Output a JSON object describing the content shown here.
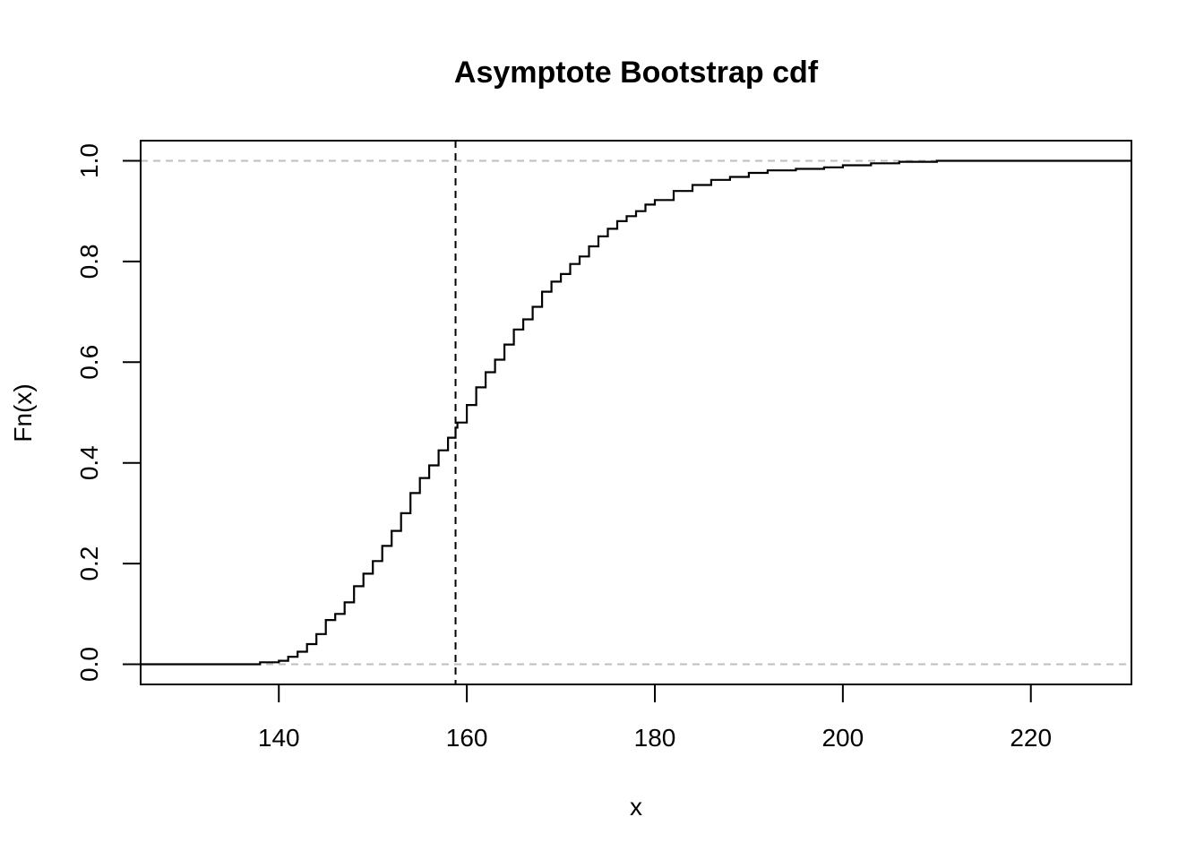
{
  "chart_data": {
    "type": "line",
    "title": "Asymptote Bootstrap cdf",
    "xlabel": "x",
    "ylabel": "Fn(x)",
    "xlim": [
      125.3,
      230.7
    ],
    "ylim": [
      -0.04,
      1.04
    ],
    "x_ticks": [
      140,
      160,
      180,
      200,
      220
    ],
    "y_ticks": [
      0.0,
      0.2,
      0.4,
      0.6,
      0.8,
      1.0
    ],
    "x_tick_labels": [
      "140",
      "160",
      "180",
      "200",
      "220"
    ],
    "y_tick_labels": [
      "0.0",
      "0.2",
      "0.4",
      "0.6",
      "0.8",
      "1.0"
    ],
    "grid": false,
    "reference_lines": {
      "horizontal": [
        0,
        1
      ],
      "horizontal_color": "#bebebe",
      "vertical": [
        158.8
      ],
      "vertical_color": "#000000"
    },
    "series": [
      {
        "x": [
          125.3,
          136,
          138,
          140,
          141,
          142,
          143,
          144,
          145,
          146,
          147,
          148,
          149,
          150,
          151,
          152,
          153,
          154,
          155,
          156,
          157,
          158,
          158.8,
          159,
          160,
          161,
          162,
          163,
          164,
          165,
          166,
          167,
          168,
          169,
          170,
          171,
          172,
          173,
          174,
          175,
          176,
          177,
          178,
          179,
          180,
          182,
          184,
          186,
          188,
          190,
          192,
          195,
          198,
          200,
          203,
          206,
          210,
          230.7
        ],
        "y": [
          0.0,
          0.0,
          0.004,
          0.007,
          0.015,
          0.025,
          0.04,
          0.06,
          0.088,
          0.1,
          0.123,
          0.155,
          0.18,
          0.205,
          0.235,
          0.265,
          0.3,
          0.34,
          0.37,
          0.395,
          0.425,
          0.45,
          0.47,
          0.48,
          0.515,
          0.55,
          0.58,
          0.605,
          0.635,
          0.665,
          0.685,
          0.71,
          0.74,
          0.76,
          0.775,
          0.795,
          0.81,
          0.83,
          0.85,
          0.865,
          0.88,
          0.89,
          0.9,
          0.913,
          0.922,
          0.94,
          0.952,
          0.962,
          0.968,
          0.976,
          0.981,
          0.984,
          0.987,
          0.991,
          0.995,
          0.998,
          1.0,
          1.0
        ]
      }
    ]
  }
}
